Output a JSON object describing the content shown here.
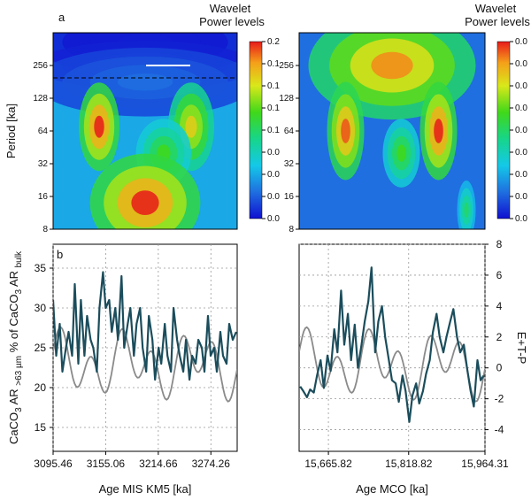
{
  "chart_data": [
    {
      "id": "a-left",
      "type": "heatmap",
      "panel_label": "a",
      "title_lines": [
        "Wavelet",
        "Power levels"
      ],
      "ylabel": "Period [ka]",
      "yscale": "log2",
      "yticks": [
        "8",
        "16",
        "32",
        "64",
        "128",
        "256"
      ],
      "colorbar_ticks": [
        "0.2",
        "0.1",
        "0.1",
        "0.1",
        "0.1",
        "0.0",
        "0.0",
        "0.0",
        "0.0"
      ],
      "blobs": [
        {
          "period": 420,
          "time": 0.5,
          "power": 0.02,
          "w": 1.2,
          "h": 0.35
        },
        {
          "period": 256,
          "time": 0.5,
          "power": 0.05,
          "w": 1.2,
          "h": 0.25
        },
        {
          "period": 180,
          "time": 0.5,
          "power": 0.15,
          "w": 1.2,
          "h": 0.35
        },
        {
          "period": 70,
          "time": 0.25,
          "power": 1.0,
          "w": 0.22,
          "h": 0.45
        },
        {
          "period": 70,
          "time": 0.75,
          "power": 0.8,
          "w": 0.25,
          "h": 0.45
        },
        {
          "period": 40,
          "time": 0.6,
          "power": 0.6,
          "w": 0.3,
          "h": 0.35
        },
        {
          "period": 14,
          "time": 0.5,
          "power": 1.0,
          "w": 0.6,
          "h": 0.5
        }
      ]
    },
    {
      "id": "a-right",
      "type": "heatmap",
      "title_lines": [
        "Wavelet",
        "Power levels"
      ],
      "yscale": "log2",
      "yticks": [
        "8",
        "16",
        "32",
        "64",
        "128",
        "256"
      ],
      "colorbar_ticks": [
        "0.0",
        "0.0",
        "0.0",
        "0.0",
        "0.0",
        "0.0",
        "0.0",
        "0.0",
        "0.0"
      ],
      "blobs": [
        {
          "period": 256,
          "time": 0.5,
          "power": 0.9,
          "w": 0.9,
          "h": 0.55
        },
        {
          "period": 64,
          "time": 0.25,
          "power": 0.95,
          "w": 0.2,
          "h": 0.5
        },
        {
          "period": 64,
          "time": 0.75,
          "power": 1.0,
          "w": 0.2,
          "h": 0.5
        },
        {
          "period": 40,
          "time": 0.55,
          "power": 0.6,
          "w": 0.2,
          "h": 0.35
        },
        {
          "period": 12,
          "time": 0.9,
          "power": 0.5,
          "w": 0.1,
          "h": 0.3
        }
      ]
    },
    {
      "id": "b-left",
      "type": "line",
      "panel_label": "b",
      "xlabel": "Age MIS KM5 [ka]",
      "ylabel": "CaCO3 AR >63 µm % of CaCO3 AR bulk",
      "xlim": [
        3095.46,
        3304.06
      ],
      "ylim": [
        12,
        38
      ],
      "xticks": [
        3095.46,
        3155.06,
        3214.66,
        3274.26
      ],
      "xtick_labels": [
        "3095.46",
        "3155.06",
        "3214.66",
        "3274.26"
      ],
      "yticks": [
        15,
        20,
        25,
        30,
        35
      ],
      "series": [
        {
          "color": "#1b4d5c",
          "axis": "left",
          "x": [
            3095.5,
            3099,
            3103,
            3106,
            3110,
            3113,
            3117,
            3120,
            3124,
            3127,
            3131,
            3134,
            3138,
            3141,
            3145,
            3148,
            3152,
            3155,
            3159,
            3162,
            3166,
            3169,
            3173,
            3176,
            3180,
            3183,
            3187,
            3190,
            3194,
            3197,
            3201,
            3204,
            3208,
            3211,
            3215,
            3218,
            3222,
            3225,
            3229,
            3232,
            3236,
            3239,
            3243,
            3246,
            3250,
            3253,
            3257,
            3260,
            3264,
            3267,
            3271,
            3274,
            3278,
            3281,
            3285,
            3288,
            3292,
            3295,
            3299,
            3303
          ],
          "y": [
            31,
            24,
            28,
            22,
            25,
            27,
            24,
            33,
            23,
            31,
            24,
            29,
            26,
            25,
            22,
            30,
            34.5,
            30,
            31,
            27,
            30,
            26,
            34,
            25,
            28,
            30,
            24,
            28,
            30,
            25,
            22,
            29,
            26,
            21,
            25,
            23,
            28,
            24,
            22,
            30,
            26,
            24,
            22,
            26,
            21,
            24,
            23,
            26,
            25,
            22,
            29,
            24,
            25,
            22,
            27,
            24,
            23,
            28,
            26,
            27
          ]
        },
        {
          "color": "#8a8a8a",
          "axis": "left"
        }
      ]
    },
    {
      "id": "b-right",
      "type": "line",
      "xlabel": "Age MCO [ka]",
      "ylabel": "E+T-P",
      "xlim": [
        15610,
        15964.31
      ],
      "ylim": [
        -5.4,
        8
      ],
      "xticks": [
        15665.82,
        15818.82,
        15964.31
      ],
      "xtick_labels": [
        "15,665.82",
        "15,818.82",
        "15,964.31"
      ],
      "yticks": [
        -4,
        -2,
        0,
        2,
        4,
        6,
        8
      ],
      "series": [
        {
          "color": "#1b4d5c",
          "axis": "right",
          "x": [
            15612,
            15618,
            15625,
            15631,
            15638,
            15644,
            15651,
            15657,
            15664,
            15670,
            15677,
            15683,
            15690,
            15696,
            15703,
            15709,
            15716,
            15722,
            15729,
            15735,
            15742,
            15748,
            15755,
            15761,
            15768,
            15774,
            15781,
            15787,
            15794,
            15800,
            15807,
            15813,
            15820,
            15826,
            15833,
            15839,
            15846,
            15852,
            15859,
            15865,
            15872,
            15878,
            15885,
            15891,
            15898,
            15904,
            15911,
            15917,
            15924,
            15930,
            15937,
            15943,
            15950,
            15956,
            15962
          ],
          "y": [
            -1.2,
            -1.5,
            -1.9,
            -1.4,
            -1.6,
            -0.5,
            0.5,
            -1.3,
            0.8,
            -0.2,
            2.5,
            1.0,
            5.0,
            1.5,
            3.5,
            0.5,
            2.8,
            0.0,
            1.5,
            3.0,
            4.3,
            6.5,
            1.0,
            3.0,
            4.0,
            2.0,
            0.5,
            -0.8,
            -1.0,
            -2.2,
            -0.5,
            -1.5,
            -3.5,
            -1.8,
            -1.0,
            -2.3,
            -1.5,
            -0.4,
            0.5,
            2.3,
            3.5,
            2.0,
            1.0,
            2.0,
            3.0,
            3.8,
            2.0,
            1.0,
            1.5,
            0.0,
            -1.5,
            -2.5,
            0.5,
            -0.8,
            -0.5
          ]
        },
        {
          "color": "#8a8a8a",
          "axis": "right"
        }
      ]
    }
  ]
}
